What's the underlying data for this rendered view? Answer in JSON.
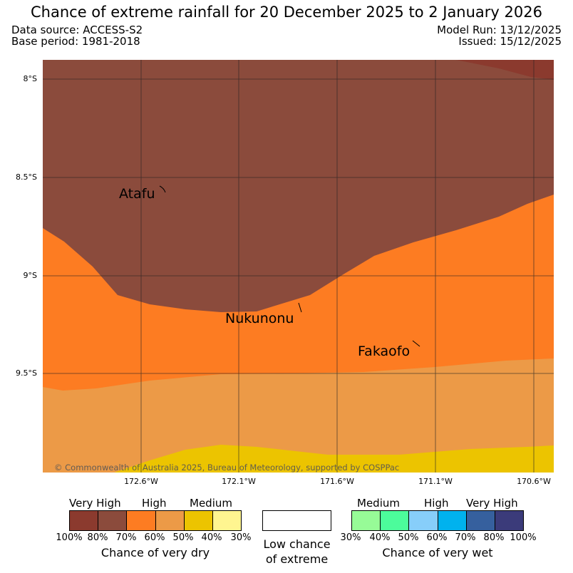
{
  "title": "Chance of extreme rainfall for 20 December 2025 to 2 January 2026",
  "header": {
    "data_source": "Data source: ACCESS-S2",
    "base_period": "Base period: 1981-2018",
    "model_run": "Model Run: 13/12/2025",
    "issued": "Issued: 15/12/2025"
  },
  "map": {
    "lat_labels": [
      "8°S",
      "8.5°S",
      "9°S",
      "9.5°S"
    ],
    "lon_labels": [
      "172.6°W",
      "172.1°W",
      "171.6°W",
      "171.1°W",
      "170.6°W"
    ],
    "places": [
      "Atafu",
      "Nukunonu",
      "Fakaofo"
    ],
    "copyright": "© Commonwealth of Australia 2025, Bureau of Meteorology, supported by COSPPac",
    "zone_colors": {
      "dry_very_high_80_100": "#8b3a2e",
      "dry_very_high_70_80": "#8b4b3c",
      "dry_high_60_70": "#fd7c22",
      "dry_high_50_60": "#ec9a47",
      "dry_medium_40_50": "#ecc400"
    }
  },
  "legend": {
    "dry": {
      "categories": [
        "Very High",
        "High",
        "Medium"
      ],
      "colors": [
        "#8b3a2e",
        "#8b4b3c",
        "#fd7c22",
        "#ec9a47",
        "#ecc400",
        "#fff590"
      ],
      "ticks": [
        "100%",
        "80%",
        "70%",
        "60%",
        "50%",
        "40%",
        "30%"
      ],
      "caption": "Chance of very dry"
    },
    "low": {
      "color": "#ffffff",
      "caption_line1": "Low chance",
      "caption_line2": "of extreme"
    },
    "wet": {
      "categories": [
        "Medium",
        "High",
        "Very High"
      ],
      "colors": [
        "#97fb97",
        "#4cfc9b",
        "#87cefa",
        "#00b2ee",
        "#36609e",
        "#3b3b7a"
      ],
      "ticks": [
        "30%",
        "40%",
        "50%",
        "60%",
        "70%",
        "80%",
        "100%"
      ],
      "caption": "Chance of very wet"
    }
  }
}
